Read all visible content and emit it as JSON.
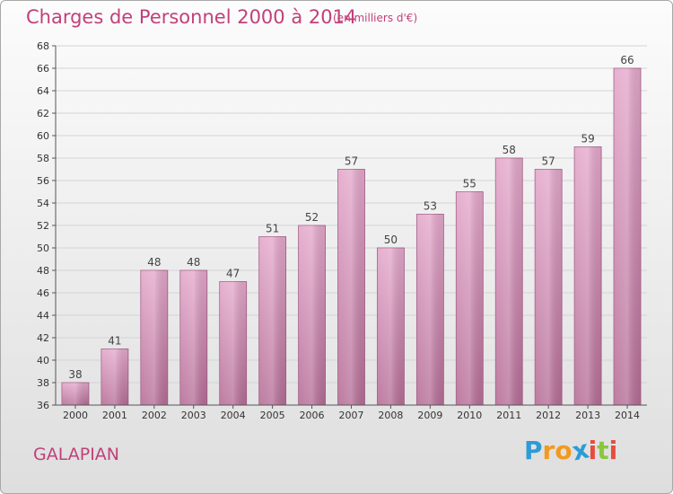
{
  "header": {
    "title": "Charges de Personnel 2000 à 2014",
    "subtitle": "(en milliers d'€)"
  },
  "footer": {
    "town": "GALAPIAN",
    "logo_letters": [
      "P",
      "r",
      "o",
      "x",
      "i",
      "t",
      "i"
    ],
    "logo_colors": [
      "#2d9bd6",
      "#f29a1d",
      "#f29a1d",
      "#2d9bd6",
      "#e84c3d",
      "#8cc63f",
      "#e84c3d"
    ]
  },
  "chart_data": {
    "type": "bar",
    "title": "Charges de Personnel 2000 à 2014",
    "subtitle": "(en milliers d'€)",
    "categories": [
      "2000",
      "2001",
      "2002",
      "2003",
      "2004",
      "2005",
      "2006",
      "2007",
      "2008",
      "2009",
      "2010",
      "2011",
      "2012",
      "2013",
      "2014"
    ],
    "values": [
      38,
      41,
      48,
      48,
      47,
      51,
      52,
      57,
      50,
      53,
      55,
      58,
      57,
      59,
      66
    ],
    "ylim": [
      36,
      68
    ],
    "yticks": [
      36,
      38,
      40,
      42,
      44,
      46,
      48,
      50,
      52,
      54,
      56,
      58,
      60,
      62,
      64,
      66,
      68
    ],
    "grid": true,
    "bar_color_top": "#e4a8cb",
    "bar_color_bottom": "#b56d96",
    "xlabel": "",
    "ylabel": ""
  }
}
